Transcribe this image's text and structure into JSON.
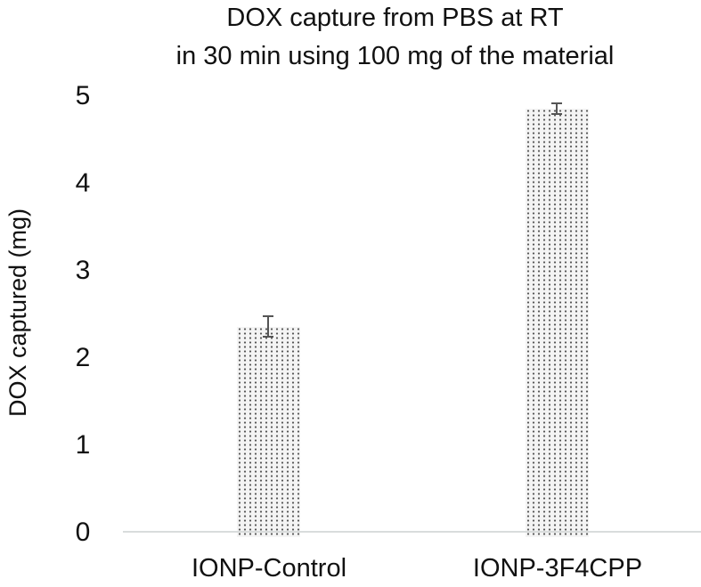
{
  "chart_data": {
    "type": "bar",
    "title": "DOX capture from PBS at RT in 30 min using 100 mg of the material",
    "title_lines": [
      "DOX capture from PBS at RT",
      "in 30 min using 100 mg of the material"
    ],
    "xlabel": "",
    "ylabel": "DOX captured (mg)",
    "categories": [
      "IONP-Control",
      "IONP-3F4CPP"
    ],
    "values": [
      2.35,
      4.85
    ],
    "error": [
      0.12,
      0.06
    ],
    "ylim": [
      0,
      5
    ],
    "yticks": [
      "0",
      "1",
      "2",
      "3",
      "4",
      "5"
    ],
    "grid": false,
    "legend": null,
    "bar_fill": "dotted gray pattern"
  }
}
